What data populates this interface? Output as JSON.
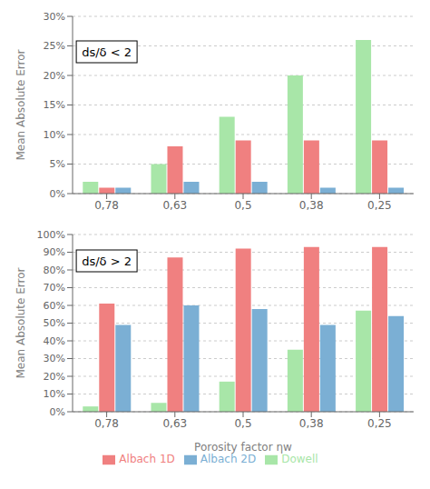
{
  "chart_data": [
    {
      "type": "bar",
      "categories": [
        "0,78",
        "0,63",
        "0,5",
        "0,38",
        "0,25"
      ],
      "series": [
        {
          "name": "Dowell",
          "color": "#a8e6a8",
          "values": [
            0.02,
            0.05,
            0.13,
            0.2,
            0.26
          ]
        },
        {
          "name": "Albach 1D",
          "color": "#f08080",
          "values": [
            0.01,
            0.08,
            0.09,
            0.09,
            0.09
          ]
        },
        {
          "name": "Albach 2D",
          "color": "#7bafd4",
          "values": [
            0.01,
            0.02,
            0.02,
            0.01,
            0.01
          ]
        }
      ],
      "y_label": "Mean Absolute Error",
      "annotations": [
        "ds/δ < 2"
      ],
      "ylim": [
        0,
        0.3
      ],
      "yticks": [
        {
          "value": 0,
          "label": "0%"
        },
        {
          "value": 0.05,
          "label": "5%"
        },
        {
          "value": 0.1,
          "label": "10%"
        },
        {
          "value": 0.15,
          "label": "15%"
        },
        {
          "value": 0.2,
          "label": "20%"
        },
        {
          "value": 0.25,
          "label": "25%"
        },
        {
          "value": 0.3,
          "label": "30%"
        }
      ],
      "grid": true
    },
    {
      "type": "bar",
      "categories": [
        "0,78",
        "0,63",
        "0,5",
        "0,38",
        "0,25"
      ],
      "series": [
        {
          "name": "Dowell",
          "color": "#a8e6a8",
          "values": [
            0.03,
            0.05,
            0.17,
            0.35,
            0.57
          ]
        },
        {
          "name": "Albach 1D",
          "color": "#f08080",
          "values": [
            0.61,
            0.87,
            0.92,
            0.93,
            0.93
          ]
        },
        {
          "name": "Albach 2D",
          "color": "#7bafd4",
          "values": [
            0.49,
            0.6,
            0.58,
            0.49,
            0.54
          ]
        }
      ],
      "x_label": "Porosity factor ηw",
      "y_label": "Mean Absolute Error",
      "annotations": [
        "ds/δ > 2"
      ],
      "ylim": [
        0,
        1.0
      ],
      "yticks": [
        {
          "value": 0,
          "label": "0%"
        },
        {
          "value": 0.1,
          "label": "10%"
        },
        {
          "value": 0.2,
          "label": "20%"
        },
        {
          "value": 0.3,
          "label": "30%"
        },
        {
          "value": 0.4,
          "label": "40%"
        },
        {
          "value": 0.5,
          "label": "50%"
        },
        {
          "value": 0.6,
          "label": "60%"
        },
        {
          "value": 0.7,
          "label": "70%"
        },
        {
          "value": 0.8,
          "label": "80%"
        },
        {
          "value": 0.9,
          "label": "90%"
        },
        {
          "value": 1.0,
          "label": "100%"
        }
      ],
      "grid": true,
      "legend": "bottom"
    }
  ]
}
